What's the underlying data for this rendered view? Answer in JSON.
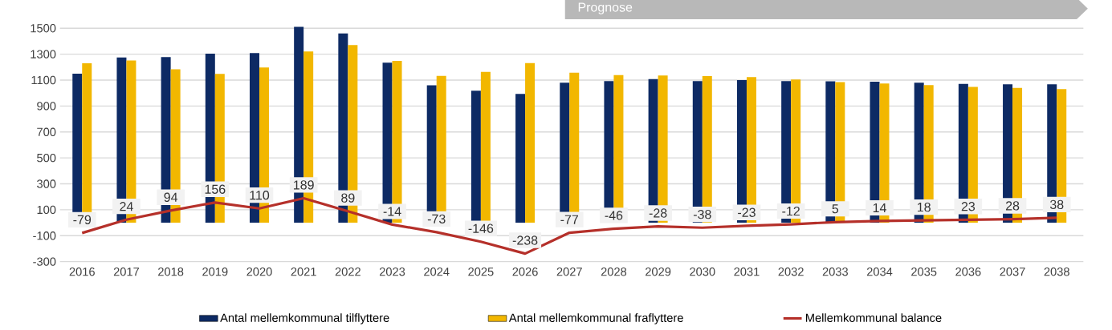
{
  "chart_data": {
    "type": "bar",
    "categories": [
      "2016",
      "2017",
      "2018",
      "2019",
      "2020",
      "2021",
      "2022",
      "2023",
      "2024",
      "2025",
      "2026",
      "2027",
      "2028",
      "2029",
      "2030",
      "2031",
      "2032",
      "2033",
      "2034",
      "2035",
      "2036",
      "2037",
      "2038"
    ],
    "series": [
      {
        "name": "Antal mellemkommunal tilflyttere",
        "color": "#0d2a64",
        "values": [
          1150,
          1275,
          1278,
          1304,
          1308,
          1510,
          1460,
          1235,
          1060,
          1018,
          993,
          1080,
          1093,
          1108,
          1093,
          1100,
          1092,
          1090,
          1088,
          1080,
          1070,
          1068,
          1068
        ]
      },
      {
        "name": "Antal mellemkommunal fraflyttere",
        "color": "#f2b700",
        "values": [
          1229,
          1251,
          1184,
          1148,
          1198,
          1321,
          1371,
          1249,
          1133,
          1164,
          1231,
          1157,
          1139,
          1136,
          1131,
          1123,
          1104,
          1085,
          1074,
          1062,
          1047,
          1040,
          1030
        ]
      },
      {
        "name": "Mellemkommunal balance",
        "type": "line",
        "color": "#b5302a",
        "data_labels": true,
        "values": [
          -79,
          24,
          94,
          156,
          110,
          189,
          89,
          -14,
          -73,
          -146,
          -238,
          -77,
          -46,
          -28,
          -38,
          -23,
          -12,
          5,
          14,
          18,
          23,
          28,
          38
        ]
      }
    ],
    "ylim": [
      -300,
      1520
    ],
    "yticks": [
      -300,
      -100,
      100,
      300,
      500,
      700,
      900,
      1100,
      1300,
      1500
    ],
    "grid": "y",
    "legend": "bottom",
    "annotations": [
      "Prognose"
    ]
  }
}
